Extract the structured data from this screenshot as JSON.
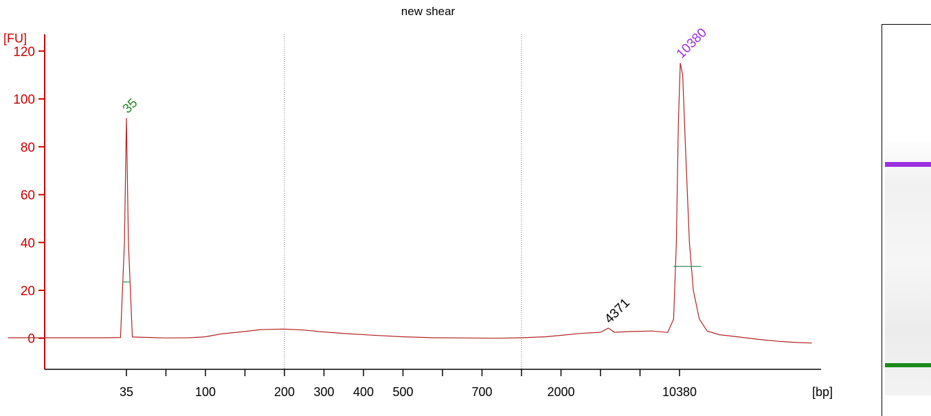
{
  "chart_data": {
    "type": "line",
    "title": "new shear",
    "ylabel": "[FU]",
    "xlabel": "[bp]",
    "ylim": [
      -13,
      127
    ],
    "yticks": [
      0,
      20,
      40,
      60,
      80,
      100,
      120
    ],
    "xticks": [
      {
        "label": "35",
        "pos": 0
      },
      {
        "label": "",
        "pos": 1
      },
      {
        "label": "100",
        "pos": 2
      },
      {
        "label": "",
        "pos": 3
      },
      {
        "label": "200",
        "pos": 4
      },
      {
        "label": "300",
        "pos": 5
      },
      {
        "label": "400",
        "pos": 6
      },
      {
        "label": "500",
        "pos": 7
      },
      {
        "label": "",
        "pos": 8
      },
      {
        "label": "700",
        "pos": 9
      },
      {
        "label": "",
        "pos": 10
      },
      {
        "label": "2000",
        "pos": 11
      },
      {
        "label": "",
        "pos": 12
      },
      {
        "label": "",
        "pos": 13
      },
      {
        "label": "10380",
        "pos": 14
      }
    ],
    "series": [
      {
        "color": "#b22222",
        "points": [
          [
            -3.0,
            0.2
          ],
          [
            -0.5,
            0.2
          ],
          [
            -0.15,
            0.3
          ],
          [
            -0.05,
            40
          ],
          [
            0.0,
            92
          ],
          [
            0.05,
            40
          ],
          [
            0.15,
            0.5
          ],
          [
            0.6,
            0.3
          ],
          [
            1.0,
            0.1
          ],
          [
            1.6,
            0.2
          ],
          [
            2.0,
            0.6
          ],
          [
            2.4,
            1.8
          ],
          [
            3.0,
            2.8
          ],
          [
            3.4,
            3.6
          ],
          [
            4.0,
            3.8
          ],
          [
            4.5,
            3.4
          ],
          [
            5.0,
            2.6
          ],
          [
            5.6,
            1.9
          ],
          [
            6.2,
            1.3
          ],
          [
            7.0,
            0.6
          ],
          [
            7.8,
            0.2
          ],
          [
            8.6,
            0.1
          ],
          [
            9.4,
            0.0
          ],
          [
            10.0,
            0.2
          ],
          [
            10.6,
            0.6
          ],
          [
            11.0,
            1.2
          ],
          [
            11.5,
            2.0
          ],
          [
            12.0,
            2.5
          ],
          [
            12.2,
            4.2
          ],
          [
            12.35,
            2.5
          ],
          [
            12.8,
            2.8
          ],
          [
            13.3,
            3.0
          ],
          [
            13.7,
            2.4
          ],
          [
            13.85,
            8
          ],
          [
            13.92,
            40
          ],
          [
            13.97,
            90
          ],
          [
            14.02,
            115
          ],
          [
            14.08,
            110
          ],
          [
            14.15,
            80
          ],
          [
            14.25,
            40
          ],
          [
            14.35,
            20
          ],
          [
            14.5,
            8
          ],
          [
            14.7,
            3
          ],
          [
            15.0,
            1.5
          ],
          [
            15.5,
            0.5
          ],
          [
            16.0,
            -0.5
          ],
          [
            16.5,
            -1.3
          ],
          [
            17.0,
            -1.8
          ],
          [
            17.35,
            -2.0
          ]
        ]
      }
    ],
    "peaks": [
      {
        "label": "35",
        "x": 0.0,
        "y": 92,
        "color": "#1f8a1f"
      },
      {
        "label": "4371",
        "x": 12.2,
        "y": 4.2,
        "color": "#000000"
      },
      {
        "label": "10380",
        "x": 14.02,
        "y": 115,
        "color": "#9b30e0"
      }
    ],
    "markers": [
      {
        "x": 0.0,
        "y": 23.5,
        "half_width": 0.1
      },
      {
        "x": 14.2,
        "y": 30,
        "half_width": 0.35
      }
    ],
    "vlines": [
      4.0,
      10.0
    ],
    "grid": false,
    "legend": "none"
  },
  "gel": {
    "bands": [
      {
        "name": "upper-marker",
        "color": "#9b30e0"
      },
      {
        "name": "lower-marker",
        "color": "#1a8a1a"
      }
    ]
  }
}
